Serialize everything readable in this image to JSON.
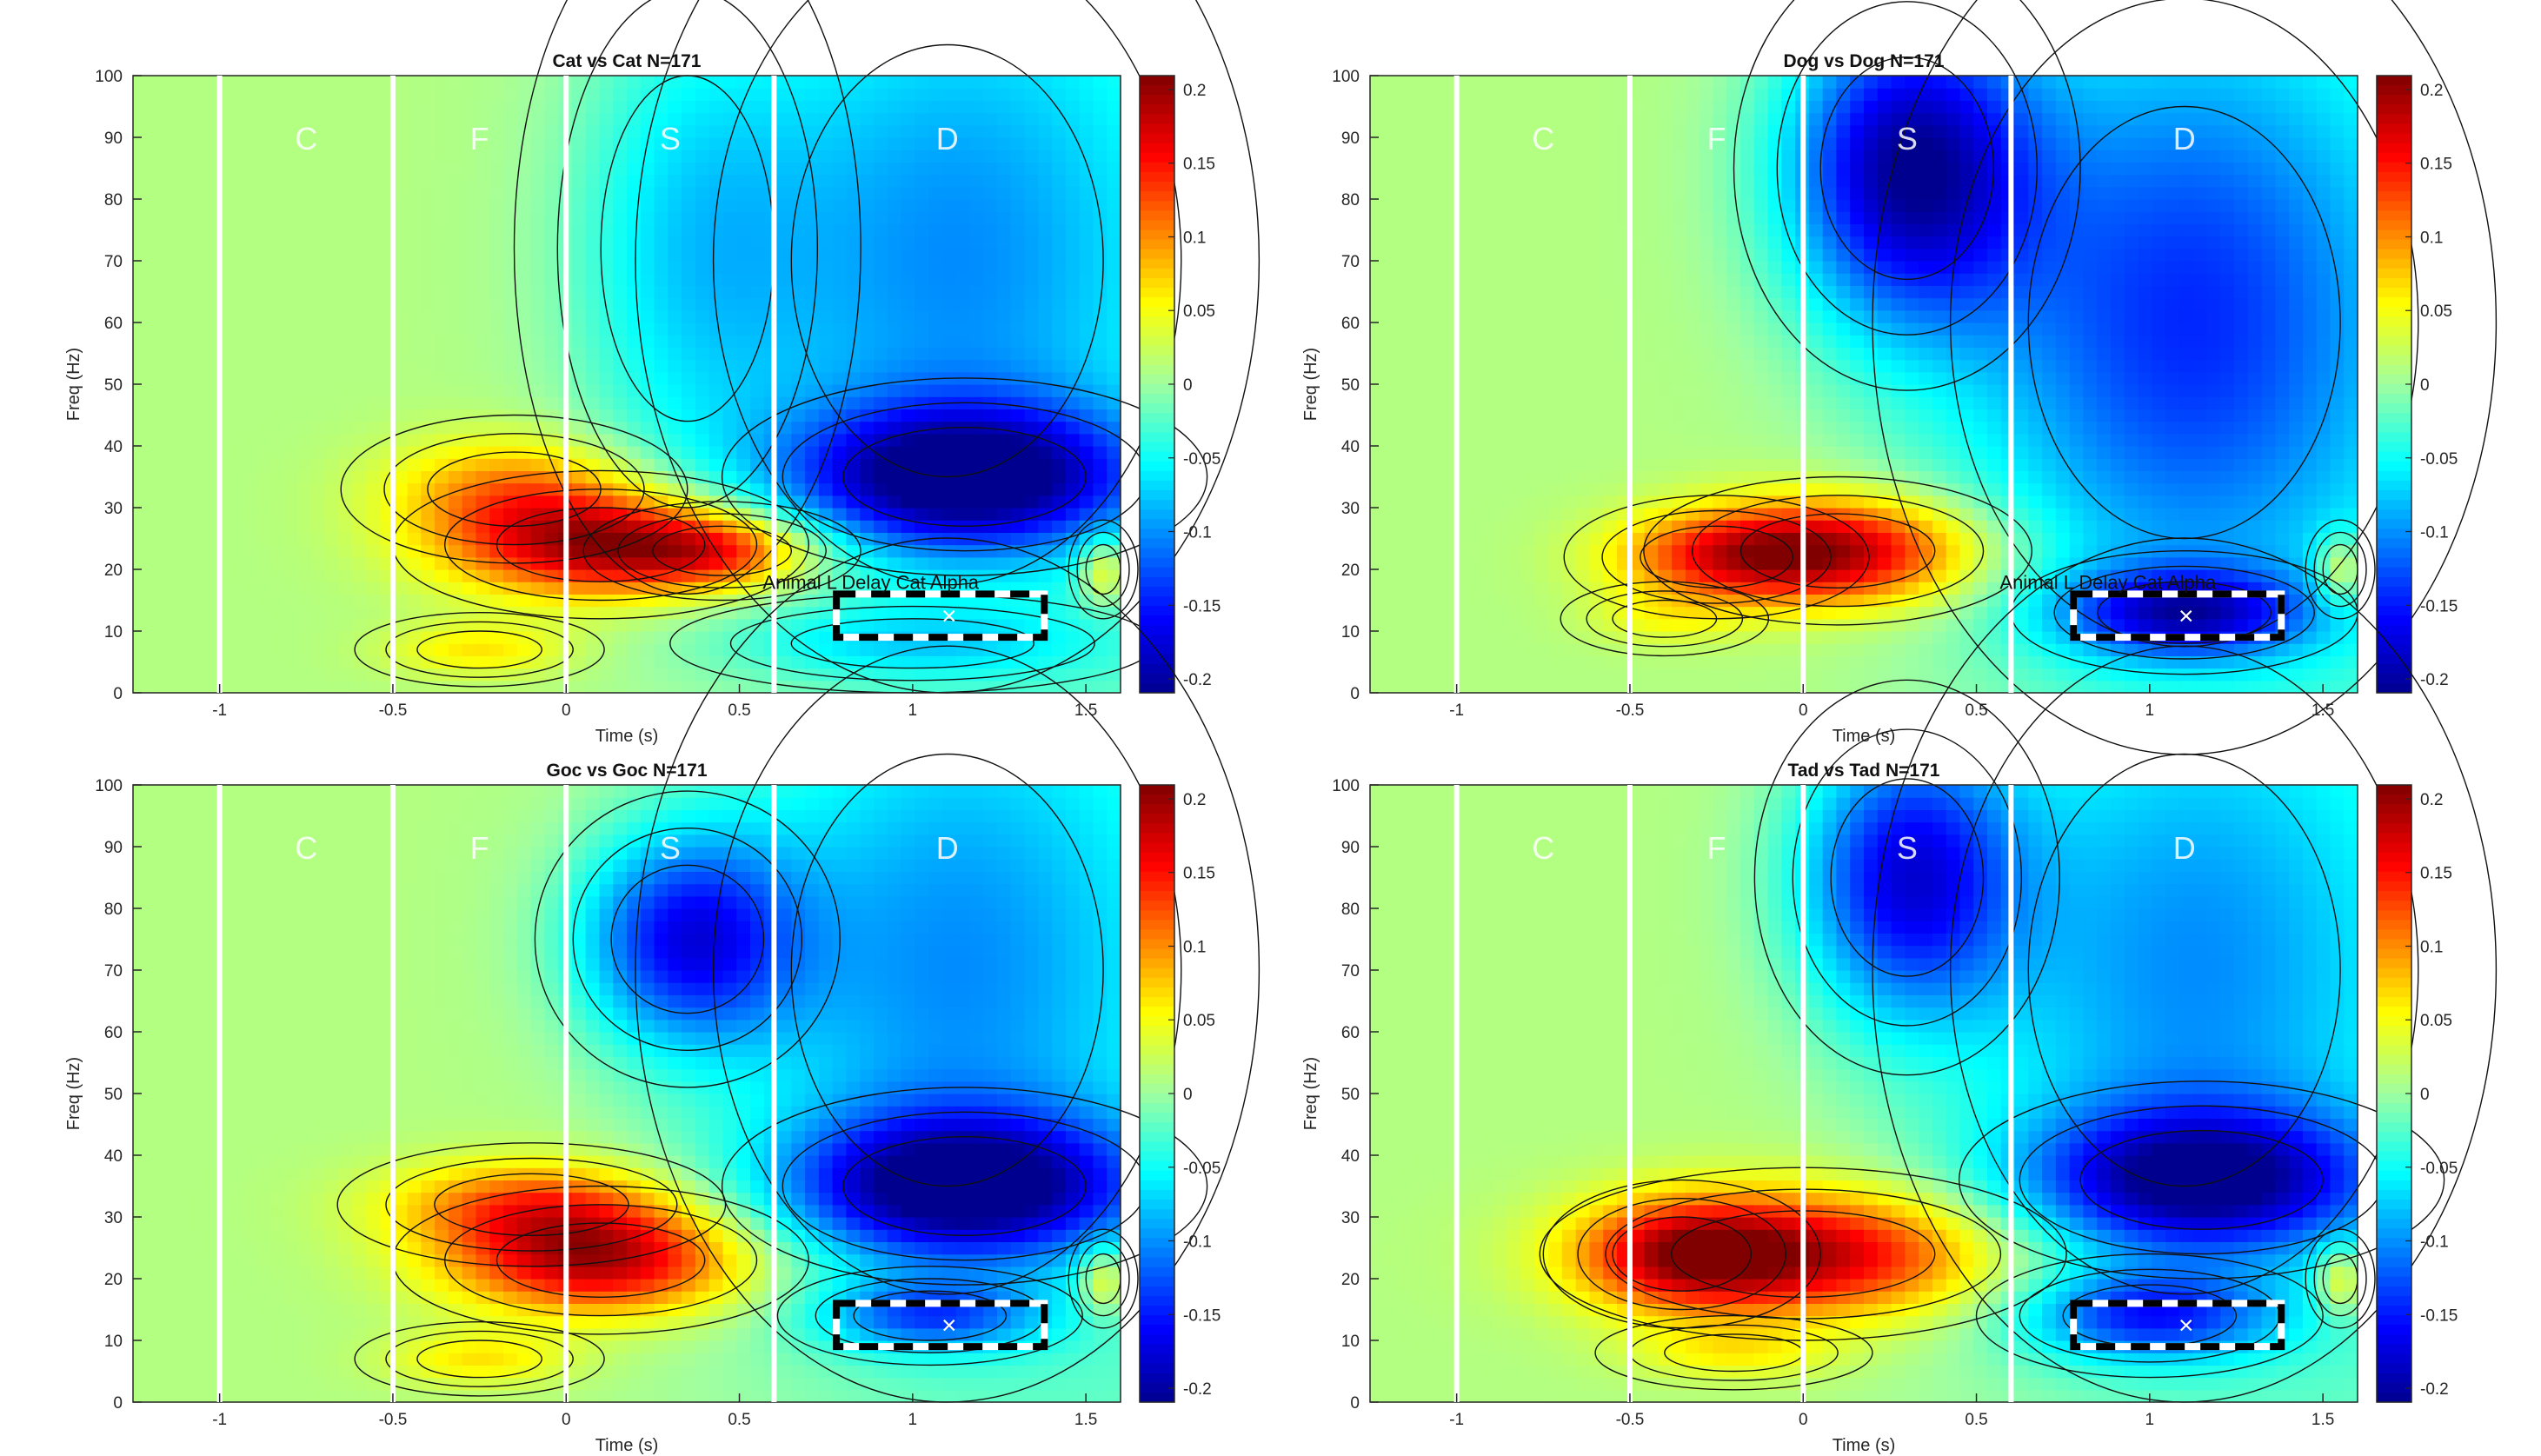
{
  "colorbar": {
    "range": [
      -0.2,
      0.2
    ],
    "ticks": [
      "0.2",
      "0.15",
      "0.1",
      "0.05",
      "0",
      "-0.05",
      "-0.1",
      "-0.15",
      "-0.2"
    ],
    "colormap": "parula"
  },
  "chart_data": [
    {
      "type": "heatmap",
      "title": "Cat vs Cat N=171",
      "xlabel": "Time (s)",
      "ylabel": "Freq (Hz)",
      "xlim": [
        -1.25,
        1.6
      ],
      "ylim": [
        0,
        100
      ],
      "xticks": [
        "-1",
        "-0.5",
        "0",
        "0.5",
        "1",
        "1.5"
      ],
      "yticks": [
        "0",
        "10",
        "20",
        "30",
        "40",
        "50",
        "60",
        "70",
        "80",
        "90",
        "100"
      ],
      "epoch_lines_x": [
        -1,
        -0.5,
        0,
        0.6
      ],
      "epoch_labels": [
        {
          "text": "C",
          "x": -0.75,
          "y": 90
        },
        {
          "text": "F",
          "x": -0.25,
          "y": 90
        },
        {
          "text": "S",
          "x": 0.3,
          "y": 90
        },
        {
          "text": "D",
          "x": 1.1,
          "y": 90
        }
      ],
      "roi": {
        "t": [
          0.78,
          1.38
        ],
        "f": [
          9,
          16
        ],
        "label": "Animal L Delay Cat Alpha"
      },
      "features": [
        {
          "t": 0.1,
          "f": 24,
          "value": 0.17,
          "st": 0.3,
          "sf": 6
        },
        {
          "t": 0.45,
          "f": 23,
          "value": 0.1,
          "st": 0.2,
          "sf": 4
        },
        {
          "t": -0.15,
          "f": 33,
          "value": 0.08,
          "st": 0.25,
          "sf": 6
        },
        {
          "t": -0.25,
          "f": 7,
          "value": 0.05,
          "st": 0.18,
          "sf": 3
        },
        {
          "t": 1.15,
          "f": 35,
          "value": -0.19,
          "st": 0.35,
          "sf": 8
        },
        {
          "t": 1.1,
          "f": 70,
          "value": -0.09,
          "st": 0.45,
          "sf": 35
        },
        {
          "t": 0.35,
          "f": 72,
          "value": -0.06,
          "st": 0.25,
          "sf": 28
        },
        {
          "t": 1.55,
          "f": 20,
          "value": 0.08,
          "st": 0.05,
          "sf": 4
        },
        {
          "t": 1.0,
          "f": 8,
          "value": -0.05,
          "st": 0.35,
          "sf": 4
        }
      ]
    },
    {
      "type": "heatmap",
      "title": "Dog vs Dog N=171",
      "xlabel": "Time (s)",
      "ylabel": "Freq (Hz)",
      "xlim": [
        -1.25,
        1.6
      ],
      "ylim": [
        0,
        100
      ],
      "xticks": [
        "-1",
        "-0.5",
        "0",
        "0.5",
        "1",
        "1.5"
      ],
      "yticks": [
        "0",
        "10",
        "20",
        "30",
        "40",
        "50",
        "60",
        "70",
        "80",
        "90",
        "100"
      ],
      "epoch_lines_x": [
        -1,
        -0.5,
        0,
        0.6
      ],
      "epoch_labels": [
        {
          "text": "C",
          "x": -0.75,
          "y": 90
        },
        {
          "text": "F",
          "x": -0.25,
          "y": 90
        },
        {
          "text": "S",
          "x": 0.3,
          "y": 90
        },
        {
          "text": "D",
          "x": 1.1,
          "y": 90
        }
      ],
      "roi": {
        "t": [
          0.78,
          1.38
        ],
        "f": [
          9,
          16
        ],
        "label": "Animal L Delay Cat Alpha"
      },
      "features": [
        {
          "t": 0.1,
          "f": 23,
          "value": 0.17,
          "st": 0.28,
          "sf": 6
        },
        {
          "t": -0.25,
          "f": 22,
          "value": 0.09,
          "st": 0.22,
          "sf": 5
        },
        {
          "t": 0.3,
          "f": 85,
          "value": -0.19,
          "st": 0.25,
          "sf": 18
        },
        {
          "t": 1.1,
          "f": 60,
          "value": -0.13,
          "st": 0.45,
          "sf": 35
        },
        {
          "t": 1.1,
          "f": 13,
          "value": -0.14,
          "st": 0.25,
          "sf": 5
        },
        {
          "t": 1.55,
          "f": 20,
          "value": 0.08,
          "st": 0.05,
          "sf": 4
        },
        {
          "t": -0.4,
          "f": 12,
          "value": 0.03,
          "st": 0.15,
          "sf": 3
        }
      ]
    },
    {
      "type": "heatmap",
      "title": "Goc vs Goc N=171",
      "xlabel": "Time (s)",
      "ylabel": "Freq (Hz)",
      "xlim": [
        -1.25,
        1.6
      ],
      "ylim": [
        0,
        100
      ],
      "xticks": [
        "-1",
        "-0.5",
        "0",
        "0.5",
        "1",
        "1.5"
      ],
      "yticks": [
        "0",
        "10",
        "20",
        "30",
        "40",
        "50",
        "60",
        "70",
        "80",
        "90",
        "100"
      ],
      "epoch_lines_x": [
        -1,
        -0.5,
        0,
        0.6
      ],
      "epoch_labels": [
        {
          "text": "C",
          "x": -0.75,
          "y": 90
        },
        {
          "text": "F",
          "x": -0.25,
          "y": 90
        },
        {
          "text": "S",
          "x": 0.3,
          "y": 90
        },
        {
          "text": "D",
          "x": 1.1,
          "y": 90
        }
      ],
      "roi": {
        "t": [
          0.78,
          1.38
        ],
        "f": [
          9,
          16
        ],
        "label": ""
      },
      "features": [
        {
          "t": 0.1,
          "f": 23,
          "value": 0.17,
          "st": 0.3,
          "sf": 6
        },
        {
          "t": -0.1,
          "f": 32,
          "value": 0.1,
          "st": 0.28,
          "sf": 5
        },
        {
          "t": 0.35,
          "f": 75,
          "value": -0.15,
          "st": 0.22,
          "sf": 12
        },
        {
          "t": 1.15,
          "f": 35,
          "value": -0.19,
          "st": 0.35,
          "sf": 8
        },
        {
          "t": 1.1,
          "f": 70,
          "value": -0.09,
          "st": 0.45,
          "sf": 35
        },
        {
          "t": 1.05,
          "f": 14,
          "value": -0.1,
          "st": 0.22,
          "sf": 4
        },
        {
          "t": -0.25,
          "f": 7,
          "value": 0.05,
          "st": 0.18,
          "sf": 3
        },
        {
          "t": 1.55,
          "f": 20,
          "value": 0.08,
          "st": 0.05,
          "sf": 4
        }
      ]
    },
    {
      "type": "heatmap",
      "title": "Tad vs Tad N=171",
      "xlabel": "Time (s)",
      "ylabel": "Freq (Hz)",
      "xlim": [
        -1.25,
        1.6
      ],
      "ylim": [
        0,
        100
      ],
      "xticks": [
        "-1",
        "-0.5",
        "0",
        "0.5",
        "1",
        "1.5"
      ],
      "yticks": [
        "0",
        "10",
        "20",
        "30",
        "40",
        "50",
        "60",
        "70",
        "80",
        "90",
        "100"
      ],
      "epoch_lines_x": [
        -1,
        -0.5,
        0,
        0.6
      ],
      "epoch_labels": [
        {
          "text": "C",
          "x": -0.75,
          "y": 90
        },
        {
          "text": "F",
          "x": -0.25,
          "y": 90
        },
        {
          "text": "S",
          "x": 0.3,
          "y": 90
        },
        {
          "text": "D",
          "x": 1.1,
          "y": 90
        }
      ],
      "roi": {
        "t": [
          0.78,
          1.38
        ],
        "f": [
          9,
          16
        ],
        "label": ""
      },
      "features": [
        {
          "t": 0.0,
          "f": 24,
          "value": 0.17,
          "st": 0.38,
          "sf": 7
        },
        {
          "t": -0.35,
          "f": 24,
          "value": 0.1,
          "st": 0.2,
          "sf": 6
        },
        {
          "t": 0.3,
          "f": 85,
          "value": -0.16,
          "st": 0.22,
          "sf": 16
        },
        {
          "t": 1.15,
          "f": 36,
          "value": -0.17,
          "st": 0.35,
          "sf": 8
        },
        {
          "t": 1.1,
          "f": 70,
          "value": -0.09,
          "st": 0.45,
          "sf": 35
        },
        {
          "t": 1.0,
          "f": 14,
          "value": -0.12,
          "st": 0.25,
          "sf": 5
        },
        {
          "t": 1.55,
          "f": 20,
          "value": 0.08,
          "st": 0.05,
          "sf": 4
        },
        {
          "t": -0.2,
          "f": 8,
          "value": 0.04,
          "st": 0.2,
          "sf": 3
        }
      ]
    }
  ]
}
